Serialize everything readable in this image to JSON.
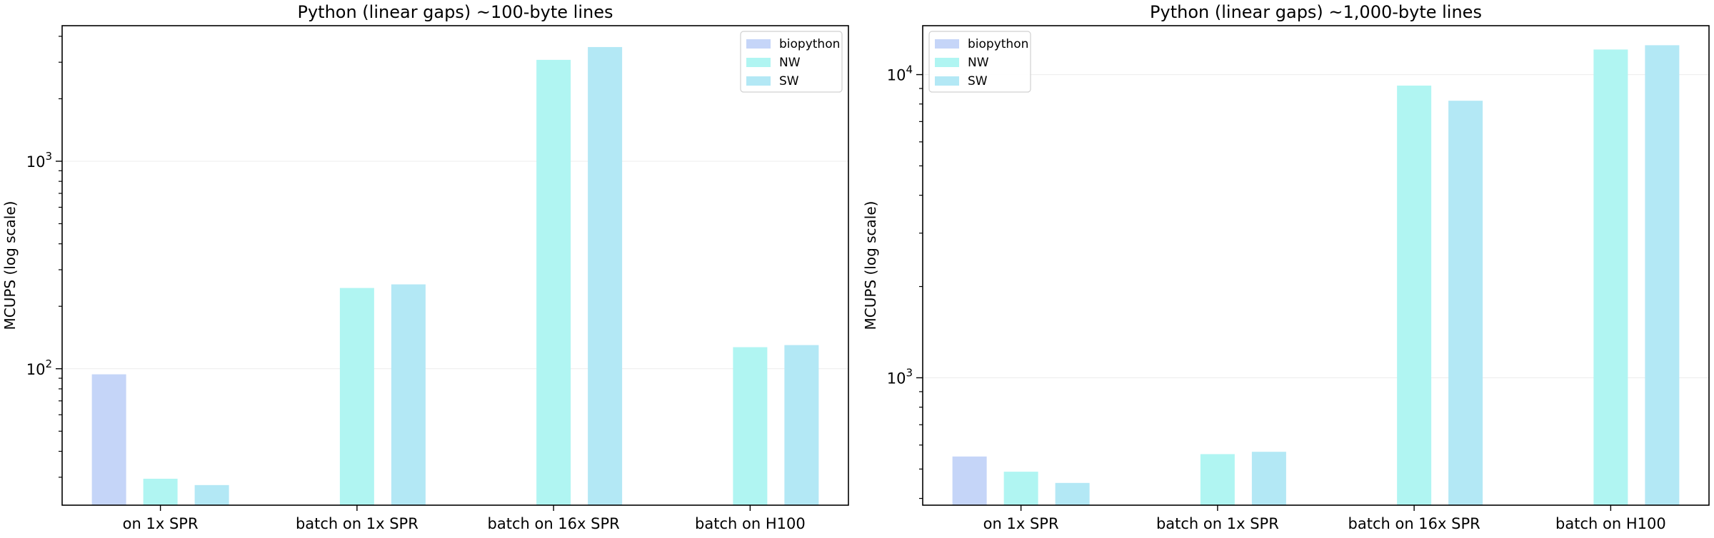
{
  "chart_data": [
    {
      "type": "bar",
      "title": "Python (linear gaps) ~100-byte lines",
      "xlabel": "",
      "ylabel": "MCUPS (log scale)",
      "yscale": "log",
      "ylim": [
        22,
        4500
      ],
      "yticks": [
        {
          "value": 100,
          "base": "10",
          "exp": "2"
        },
        {
          "value": 1000,
          "base": "10",
          "exp": "3"
        }
      ],
      "grid": "y-major",
      "legend_position": "top-right",
      "categories": [
        "on 1x SPR",
        "batch on 1x SPR",
        "batch on 16x SPR",
        "batch on H100"
      ],
      "series": [
        {
          "name": "biopython",
          "color": "#c5d5f8",
          "values": [
            94,
            null,
            null,
            null
          ]
        },
        {
          "name": "NW",
          "color": "#b0f5f2",
          "values": [
            29.5,
            245,
            3080,
            127
          ]
        },
        {
          "name": "SW",
          "color": "#b3e8f5",
          "values": [
            27.5,
            255,
            3550,
            130
          ]
        }
      ]
    },
    {
      "type": "bar",
      "title": "Python (linear gaps) ~1,000-byte lines",
      "xlabel": "",
      "ylabel": "MCUPS (log scale)",
      "yscale": "log",
      "ylim": [
        380,
        14500
      ],
      "yticks": [
        {
          "value": 1000,
          "base": "10",
          "exp": "3"
        },
        {
          "value": 10000,
          "base": "10",
          "exp": "4"
        }
      ],
      "grid": "y-major",
      "legend_position": "top-left",
      "categories": [
        "on 1x SPR",
        "batch on 1x SPR",
        "batch on 16x SPR",
        "batch on H100"
      ],
      "series": [
        {
          "name": "biopython",
          "color": "#c5d5f8",
          "values": [
            550,
            null,
            null,
            null
          ]
        },
        {
          "name": "NW",
          "color": "#b0f5f2",
          "values": [
            490,
            560,
            9200,
            12100
          ]
        },
        {
          "name": "SW",
          "color": "#b3e8f5",
          "values": [
            450,
            570,
            8200,
            12500
          ]
        }
      ]
    }
  ]
}
